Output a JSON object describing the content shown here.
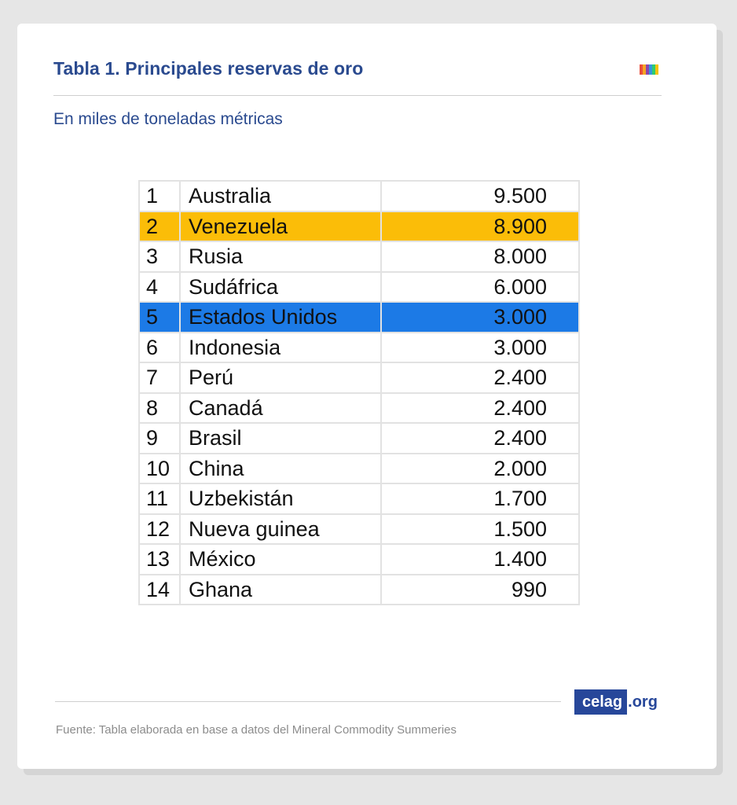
{
  "header": {
    "title": "Tabla 1. Principales reservas de oro",
    "subtitle": "En miles de toneladas métricas",
    "stripe_colors": [
      "#e94e3c",
      "#f5a623",
      "#8e44ad",
      "#3498db",
      "#2ecc71",
      "#f1c40f"
    ]
  },
  "table": {
    "rows": [
      {
        "rank": "1",
        "country": "Australia",
        "value": "9.500",
        "highlight": ""
      },
      {
        "rank": "2",
        "country": "Venezuela",
        "value": "8.900",
        "highlight": "gold"
      },
      {
        "rank": "3",
        "country": "Rusia",
        "value": "8.000",
        "highlight": ""
      },
      {
        "rank": "4",
        "country": "Sudáfrica",
        "value": "6.000",
        "highlight": ""
      },
      {
        "rank": "5",
        "country": "Estados Unidos",
        "value": "3.000",
        "highlight": "blue"
      },
      {
        "rank": "6",
        "country": "Indonesia",
        "value": "3.000",
        "highlight": ""
      },
      {
        "rank": "7",
        "country": "Perú",
        "value": "2.400",
        "highlight": ""
      },
      {
        "rank": "8",
        "country": "Canadá",
        "value": "2.400",
        "highlight": ""
      },
      {
        "rank": "9",
        "country": "Brasil",
        "value": "2.400",
        "highlight": ""
      },
      {
        "rank": "10",
        "country": "China",
        "value": "2.000",
        "highlight": ""
      },
      {
        "rank": "11",
        "country": "Uzbekistán",
        "value": "1.700",
        "highlight": ""
      },
      {
        "rank": "12",
        "country": "Nueva guinea",
        "value": "1.500",
        "highlight": ""
      },
      {
        "rank": "13",
        "country": "México",
        "value": "1.400",
        "highlight": ""
      },
      {
        "rank": "14",
        "country": "Ghana",
        "value": "990",
        "highlight": ""
      }
    ]
  },
  "footer": {
    "logo_main": "celag",
    "logo_tld": ".org",
    "source": "Fuente: Tabla elaborada en base a datos del Mineral Commodity Summeries"
  },
  "colors": {
    "accent": "#2a4a8f",
    "highlight_gold": "#fbbd08",
    "highlight_blue": "#1c7ae6"
  }
}
